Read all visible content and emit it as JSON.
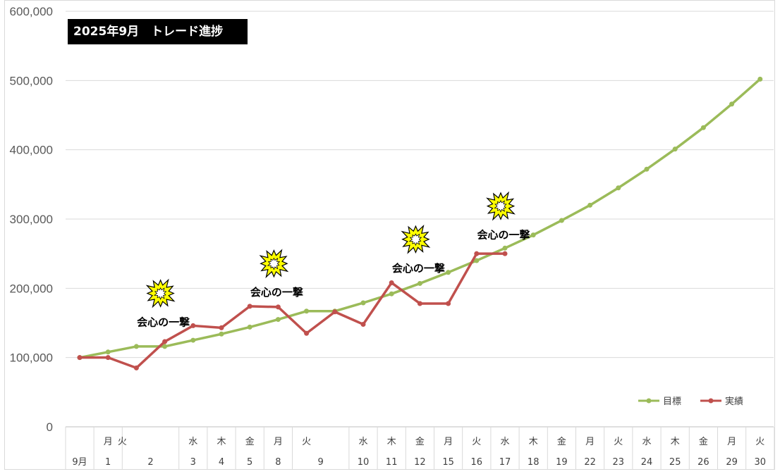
{
  "chart_data": {
    "type": "line",
    "title": "2025年9月　トレード進捗",
    "ylim": [
      0,
      600000
    ],
    "yticks": [
      "0",
      "100,000",
      "200,000",
      "300,000",
      "400,000",
      "500,000",
      "600,000"
    ],
    "grid": true,
    "legend_position": "bottom-right",
    "categories": [
      "9月",
      "1",
      "2",
      "",
      "3",
      "4",
      "5",
      "8",
      "9",
      "",
      "10",
      "11",
      "12",
      "15",
      "16",
      "17",
      "18",
      "19",
      "22",
      "23",
      "24",
      "25",
      "26",
      "29",
      "30"
    ],
    "weekdays": [
      "",
      "月",
      "火",
      "",
      "水",
      "木",
      "金",
      "月",
      "火",
      "",
      "水",
      "木",
      "金",
      "月",
      "火",
      "水",
      "木",
      "金",
      "月",
      "火",
      "水",
      "木",
      "金",
      "月",
      "火"
    ],
    "series": [
      {
        "name": "目標",
        "color": "#9bbb59",
        "values": [
          100000,
          108000,
          116000,
          116000,
          125000,
          134000,
          144000,
          155000,
          167000,
          167000,
          179000,
          192000,
          207000,
          223000,
          240000,
          258000,
          277000,
          298000,
          320000,
          345000,
          372000,
          401000,
          432000,
          466000,
          502000
        ]
      },
      {
        "name": "実績",
        "color": "#c0504d",
        "values": [
          100000,
          100000,
          85000,
          123000,
          146000,
          143000,
          174000,
          173000,
          135000,
          166000,
          148000,
          208000,
          178000,
          178000,
          250000,
          250000,
          null,
          null,
          null,
          null,
          null,
          null,
          null,
          null,
          null
        ]
      }
    ],
    "annotations": [
      {
        "text": "会心の一撃",
        "index": 3,
        "value": 150000
      },
      {
        "text": "会心の一撃",
        "index": 7,
        "value": 193000
      },
      {
        "text": "会心の一撃",
        "index": 12,
        "value": 228000
      },
      {
        "text": "会心の一撃",
        "index": 15,
        "value": 276000
      }
    ]
  }
}
